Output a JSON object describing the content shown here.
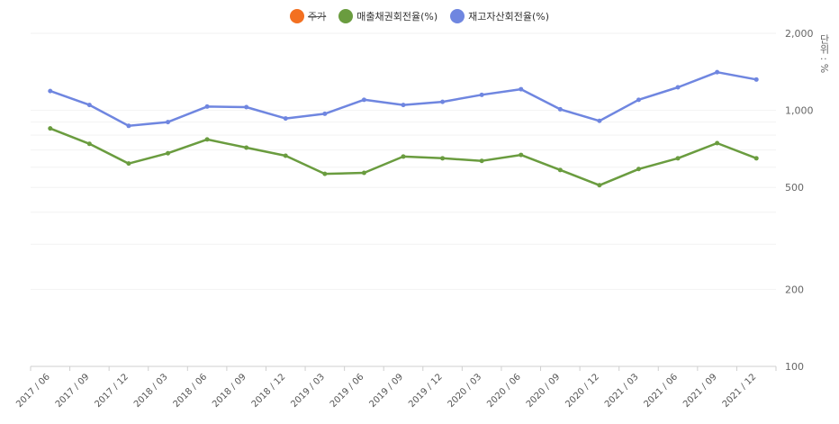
{
  "chart_data": {
    "type": "line",
    "unit_label": "단위 : %",
    "legend": [
      {
        "name": "주가",
        "color": "#f37021",
        "hidden": true
      },
      {
        "name": "매출채권회전율(%)",
        "color": "#6a9c3f",
        "hidden": false
      },
      {
        "name": "재고자산회전율(%)",
        "color": "#6f86e0",
        "hidden": false
      }
    ],
    "x": [
      "2017 / 06",
      "2017 / 09",
      "2017 / 12",
      "2018 / 03",
      "2018 / 06",
      "2018 / 09",
      "2018 / 12",
      "2019 / 03",
      "2019 / 06",
      "2019 / 09",
      "2019 / 12",
      "2020 / 03",
      "2020 / 06",
      "2020 / 09",
      "2020 / 12",
      "2021 / 03",
      "2021 / 06",
      "2021 / 09",
      "2021 / 12"
    ],
    "series": [
      {
        "name": "매출채권회전율(%)",
        "color": "#6a9c3f",
        "values": [
          850,
          740,
          620,
          680,
          770,
          715,
          665,
          565,
          570,
          660,
          650,
          635,
          670,
          585,
          510,
          590,
          650,
          745,
          650
        ]
      },
      {
        "name": "재고자산회전율(%)",
        "color": "#6f86e0",
        "values": [
          1190,
          1050,
          870,
          900,
          1035,
          1030,
          930,
          970,
          1100,
          1050,
          1080,
          1150,
          1210,
          1010,
          910,
          1100,
          1230,
          1410,
          1320
        ]
      }
    ],
    "y_scale": "log",
    "ylim": [
      100,
      2000
    ],
    "y_ticks": [
      100,
      200,
      500,
      1000,
      2000
    ],
    "y_tick_labels": [
      "100",
      "200",
      "500",
      "1,000",
      "2,000"
    ],
    "grid": true,
    "legend_position": "top-center"
  }
}
